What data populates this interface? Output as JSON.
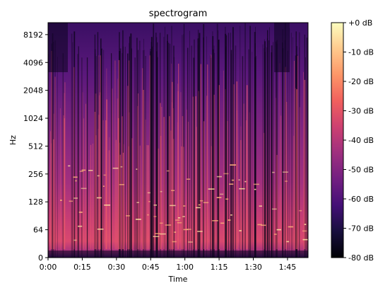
{
  "chart_data": {
    "type": "heatmap",
    "title": "spectrogram",
    "xlabel": "Time",
    "ylabel": "Hz",
    "x_unit": "seconds",
    "xlim": [
      0,
      114
    ],
    "x_scale": "linear",
    "x_ticks": [
      {
        "value": 0,
        "label": "0:00"
      },
      {
        "value": 15,
        "label": "0:15"
      },
      {
        "value": 30,
        "label": "0:30"
      },
      {
        "value": 45,
        "label": "0:45"
      },
      {
        "value": 60,
        "label": "1:00"
      },
      {
        "value": 75,
        "label": "1:15"
      },
      {
        "value": 90,
        "label": "1:30"
      },
      {
        "value": 105,
        "label": "1:45"
      }
    ],
    "y_unit": "Hz",
    "ylim": [
      0,
      11025
    ],
    "y_scale": "symlog",
    "y_linthresh": 64,
    "y_ticks": [
      {
        "value": 0,
        "label": "0"
      },
      {
        "value": 64,
        "label": "64"
      },
      {
        "value": 128,
        "label": "128"
      },
      {
        "value": 256,
        "label": "256"
      },
      {
        "value": 512,
        "label": "512"
      },
      {
        "value": 1024,
        "label": "1024"
      },
      {
        "value": 2048,
        "label": "2048"
      },
      {
        "value": 4096,
        "label": "4096"
      },
      {
        "value": 8192,
        "label": "8192"
      }
    ],
    "colormap": "magma",
    "colorbar": {
      "range_db": [
        -80,
        0
      ],
      "ticks": [
        {
          "value": 0,
          "label": "+0 dB"
        },
        {
          "value": -10,
          "label": "-10 dB"
        },
        {
          "value": -20,
          "label": "-20 dB"
        },
        {
          "value": -30,
          "label": "-30 dB"
        },
        {
          "value": -40,
          "label": "-40 dB"
        },
        {
          "value": -50,
          "label": "-50 dB"
        },
        {
          "value": -60,
          "label": "-60 dB"
        },
        {
          "value": -70,
          "label": "-70 dB"
        },
        {
          "value": -80,
          "label": "-80 dB"
        }
      ],
      "stops": [
        "#000004",
        "#180f3d",
        "#440f76",
        "#721f81",
        "#9e2f7f",
        "#cd4071",
        "#f1605d",
        "#fd9668",
        "#feca8d",
        "#fcfdbf"
      ]
    },
    "grid": false
  }
}
